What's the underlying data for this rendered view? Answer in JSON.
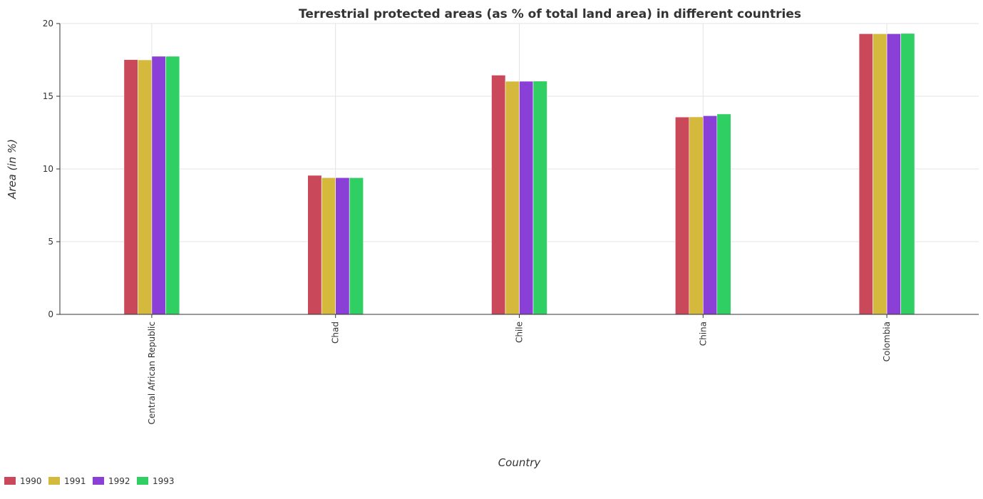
{
  "chart_data": {
    "type": "bar",
    "title": "Terrestrial protected areas (as % of total land area) in different countries",
    "xlabel": "Country",
    "ylabel": "Area (in %)",
    "ylim": [
      0,
      20
    ],
    "yticks": [
      0,
      5,
      10,
      15,
      20
    ],
    "grid": true,
    "legend_position": "bottom-left",
    "categories": [
      "Central African Republic",
      "Chad",
      "Chile",
      "China",
      "Colombia"
    ],
    "series": [
      {
        "name": "1990",
        "color": "#c9485a",
        "values": [
          17.52,
          9.56,
          16.45,
          13.57,
          19.3
        ]
      },
      {
        "name": "1991",
        "color": "#d4b93c",
        "values": [
          17.5,
          9.4,
          16.03,
          13.58,
          19.3
        ]
      },
      {
        "name": "1992",
        "color": "#8a3fd6",
        "values": [
          17.75,
          9.4,
          16.03,
          13.66,
          19.3
        ]
      },
      {
        "name": "1993",
        "color": "#2fcf63",
        "values": [
          17.75,
          9.4,
          16.04,
          13.78,
          19.32
        ]
      }
    ]
  }
}
